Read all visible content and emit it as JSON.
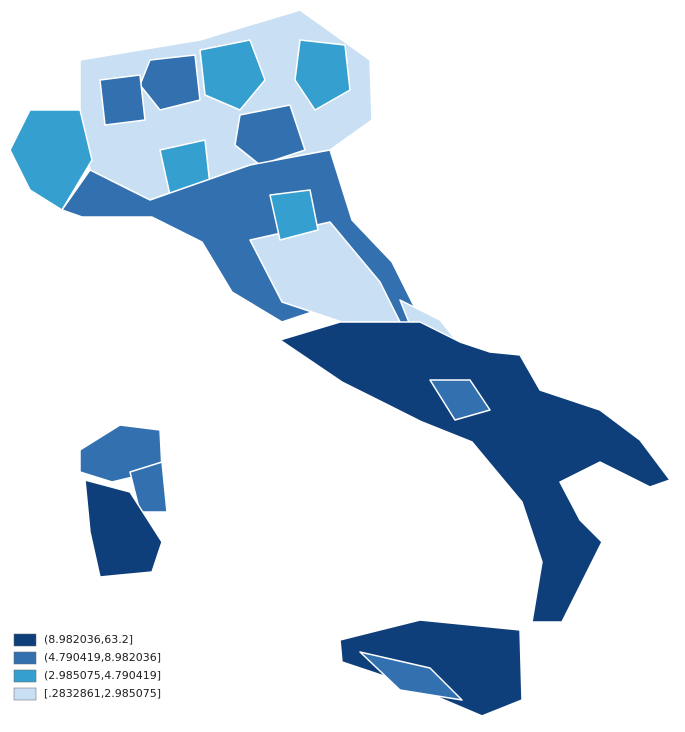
{
  "legend": {
    "items": [
      {
        "label": "(8.982036,63.2]",
        "color": "#0e3f7a"
      },
      {
        "label": "(4.790419,8.982036]",
        "color": "#3370b0"
      },
      {
        "label": "(2.985075,4.790419]",
        "color": "#35a0cf"
      },
      {
        "label": "[.2832861,2.985075]",
        "color": "#c9dff3"
      }
    ]
  }
}
